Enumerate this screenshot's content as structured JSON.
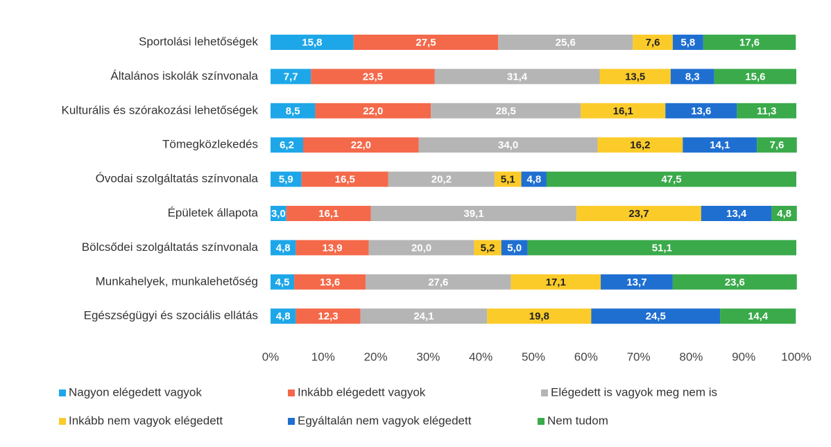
{
  "chart_data": {
    "type": "stacked_bar_horizontal",
    "categories": [
      "Sportolási lehetőségek",
      "Általános iskolák színvonala",
      "Kulturális és szórakozási lehetőségek",
      "Tömegközlekedés",
      "Óvodai szolgáltatás színvonala",
      "Épületek állapota",
      "Bölcsődei szolgáltatás színvonala",
      "Munkahelyek, munkalehetőség",
      "Egészségügyi és szociális ellátás"
    ],
    "series": [
      {
        "name": "Nagyon elégedett vagyok",
        "color": "#1ea7e8",
        "label_color": "#ffffff",
        "values": [
          15.8,
          7.7,
          8.5,
          6.2,
          5.9,
          3.0,
          4.8,
          4.5,
          4.8
        ],
        "value_labels": [
          "15,8",
          "7,7",
          "8,5",
          "6,2",
          "5,9",
          "3,0",
          "4,8",
          "4,5",
          "4,8"
        ]
      },
      {
        "name": "Inkább elégedett vagyok",
        "color": "#f4694a",
        "label_color": "#ffffff",
        "values": [
          27.5,
          23.5,
          22.0,
          22.0,
          16.5,
          16.1,
          13.9,
          13.6,
          12.3
        ],
        "value_labels": [
          "27,5",
          "23,5",
          "22,0",
          "22,0",
          "16,5",
          "16,1",
          "13,9",
          "13,6",
          "12,3"
        ]
      },
      {
        "name": "Elégedett is vagyok meg nem is",
        "color": "#b5b5b5",
        "label_color": "#ffffff",
        "values": [
          25.6,
          31.4,
          28.5,
          34.0,
          20.2,
          39.1,
          20.0,
          27.6,
          24.1
        ],
        "value_labels": [
          "25,6",
          "31,4",
          "28,5",
          "34,0",
          "20,2",
          "39,1",
          "20,0",
          "27,6",
          "24,1"
        ]
      },
      {
        "name": "Inkább nem vagyok elégedett",
        "color": "#fbcb2a",
        "label_color": "#222222",
        "values": [
          7.6,
          13.5,
          16.1,
          16.2,
          5.1,
          23.7,
          5.2,
          17.1,
          19.8
        ],
        "value_labels": [
          "7,6",
          "13,5",
          "16,1",
          "16,2",
          "5,1",
          "23,7",
          "5,2",
          "17,1",
          "19,8"
        ]
      },
      {
        "name": "Egyáltalán nem vagyok elégedett",
        "color": "#1f6fd1",
        "label_color": "#ffffff",
        "values": [
          5.8,
          8.3,
          13.6,
          14.1,
          4.8,
          13.4,
          5.0,
          13.7,
          24.5
        ],
        "value_labels": [
          "5,8",
          "8,3",
          "13,6",
          "14,1",
          "4,8",
          "13,4",
          "5,0",
          "13,7",
          "24,5"
        ]
      },
      {
        "name": "Nem tudom",
        "color": "#3aaa4a",
        "label_color": "#ffffff",
        "values": [
          17.6,
          15.6,
          11.3,
          7.6,
          47.5,
          4.8,
          51.1,
          23.6,
          14.4
        ],
        "value_labels": [
          "17,6",
          "15,6",
          "11,3",
          "7,6",
          "47,5",
          "4,8",
          "51,1",
          "23,6",
          "14,4"
        ]
      }
    ],
    "xlim": [
      0,
      100
    ],
    "xticks": [
      {
        "value": 0,
        "label": "0%"
      },
      {
        "value": 10,
        "label": "10%"
      },
      {
        "value": 20,
        "label": "20%"
      },
      {
        "value": 30,
        "label": "30%"
      },
      {
        "value": 40,
        "label": "40%"
      },
      {
        "value": 50,
        "label": "50%"
      },
      {
        "value": 60,
        "label": "60%"
      },
      {
        "value": 70,
        "label": "70%"
      },
      {
        "value": 80,
        "label": "80%"
      },
      {
        "value": 90,
        "label": "90%"
      },
      {
        "value": 100,
        "label": "100%"
      }
    ],
    "legend": "bottom"
  }
}
